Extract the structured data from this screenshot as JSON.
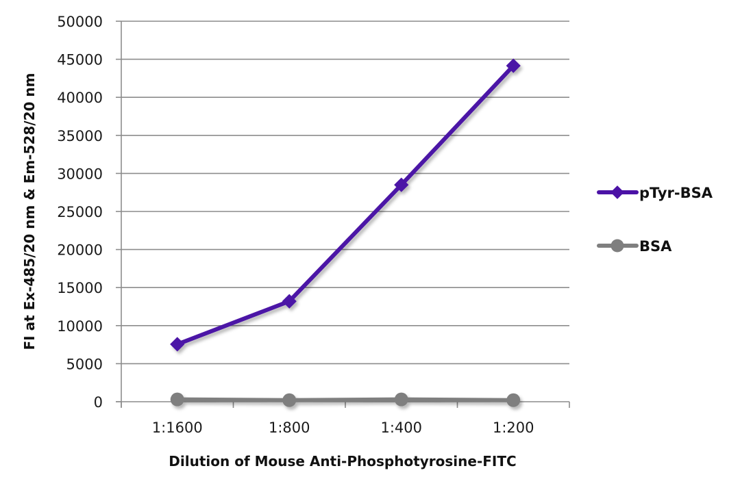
{
  "chart_data": {
    "type": "line",
    "title": "",
    "xlabel": "Dilution of Mouse Anti-Phosphotyrosine-FITC",
    "ylabel": "FI at Ex-485/20 nm & Em-528/20 nm",
    "categories": [
      "1:1600",
      "1:800",
      "1:400",
      "1:200"
    ],
    "ylim": [
      0,
      50000
    ],
    "yticks": [
      0,
      5000,
      10000,
      15000,
      20000,
      25000,
      30000,
      35000,
      40000,
      45000,
      50000
    ],
    "grid": true,
    "legend_position": "right",
    "series": [
      {
        "name": "pTyr-BSA",
        "color": "#4b12a6",
        "marker": "diamond",
        "values": [
          7550,
          13200,
          28500,
          44150
        ]
      },
      {
        "name": "BSA",
        "color": "#7f7f7f",
        "marker": "circle",
        "values": [
          300,
          200,
          300,
          200
        ]
      }
    ]
  },
  "axes": {
    "y_tick_labels": [
      "0",
      "5000",
      "10000",
      "15000",
      "20000",
      "25000",
      "30000",
      "35000",
      "40000",
      "45000",
      "50000"
    ],
    "x_tick_labels": [
      "1:1600",
      "1:800",
      "1:400",
      "1:200"
    ],
    "x_title": "Dilution of Mouse Anti-Phosphotyrosine-FITC",
    "y_title": "FI at Ex-485/20 nm & Em-528/20 nm"
  },
  "legend": {
    "items": [
      {
        "label": "pTyr-BSA",
        "color": "#4b12a6",
        "marker": "diamond"
      },
      {
        "label": "BSA",
        "color": "#7f7f7f",
        "marker": "circle"
      }
    ]
  }
}
